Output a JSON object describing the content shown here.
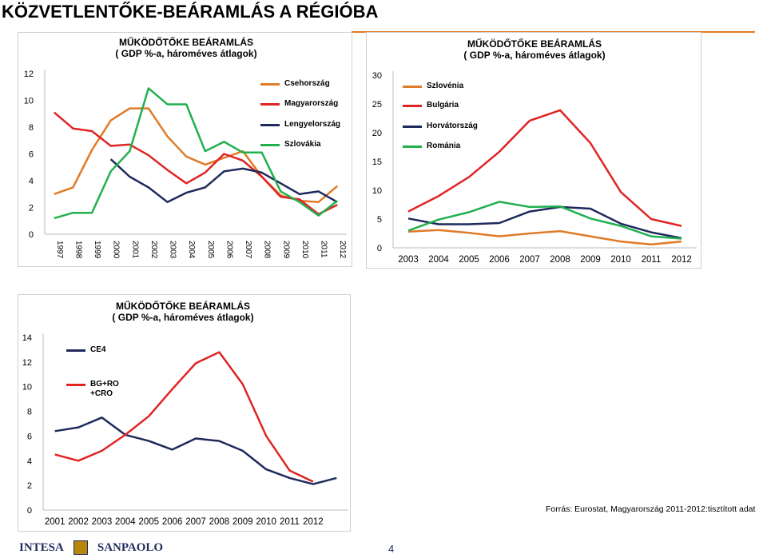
{
  "title": "KÖZVETLENTŐKE-BEÁRAMLÁS A RÉGIÓBA",
  "source": "Forrás: Eurostat, Magyarország 2011-2012:tisztított adat",
  "page_number": "4",
  "logo": {
    "left": "INTESA",
    "right": "SANPAOLO"
  },
  "chart_data": [
    {
      "type": "line",
      "title": "MŰKÖDŐTŐKE BEÁRAMLÁS",
      "subtitle": "( GDP %-a, hároméves átlagok)",
      "categories": [
        "1997",
        "1998",
        "1999",
        "2000",
        "2001",
        "2002",
        "2003",
        "2004",
        "2005",
        "2006",
        "2007",
        "2008",
        "2009",
        "2010",
        "2011",
        "2012"
      ],
      "ylim": [
        0,
        12
      ],
      "yticks": [
        0,
        2,
        4,
        6,
        8,
        10,
        12
      ],
      "grid": false,
      "x_label_rotation": 90,
      "series": [
        {
          "name": "Csehország",
          "color": "#e07b28",
          "values": [
            3.0,
            3.5,
            6.3,
            8.5,
            9.4,
            9.4,
            7.3,
            5.8,
            5.2,
            5.7,
            6.2,
            4.3,
            2.9,
            2.5,
            2.4,
            3.6
          ]
        },
        {
          "name": "Magyarország",
          "color": "#e02424",
          "values": [
            9.1,
            7.9,
            7.7,
            6.6,
            6.7,
            5.9,
            4.8,
            3.8,
            4.6,
            6.0,
            5.5,
            4.3,
            2.8,
            2.6,
            1.5,
            2.2
          ]
        },
        {
          "name": "Lengyelország",
          "color": "#1f2a5c",
          "values": [
            null,
            null,
            null,
            5.6,
            4.3,
            3.5,
            2.4,
            3.1,
            3.5,
            4.7,
            4.9,
            4.6,
            3.8,
            3.0,
            3.2,
            2.4
          ]
        },
        {
          "name": "Szlovákia",
          "color": "#22b04f",
          "values": [
            1.2,
            1.6,
            1.6,
            4.7,
            6.2,
            10.9,
            9.7,
            9.7,
            6.2,
            6.9,
            6.1,
            6.1,
            3.2,
            2.4,
            1.4,
            2.5
          ]
        }
      ]
    },
    {
      "type": "line",
      "title": "MŰKÖDŐTŐKE BEÁRAMLÁS",
      "subtitle": "( GDP %-a, hároméves átlagok)",
      "categories": [
        "2003",
        "2004",
        "2005",
        "2006",
        "2007",
        "2008",
        "2009",
        "2010",
        "2011",
        "2012"
      ],
      "ylim": [
        0,
        30
      ],
      "yticks": [
        0,
        5,
        10,
        15,
        20,
        25,
        30
      ],
      "grid": false,
      "x_label_rotation": 0,
      "series": [
        {
          "name": "Szlovénia",
          "color": "#e07b28",
          "values": [
            2.8,
            3.1,
            2.6,
            2.0,
            2.5,
            2.9,
            2.0,
            1.1,
            0.6,
            1.1
          ]
        },
        {
          "name": "Bulgária",
          "color": "#e02424",
          "values": [
            6.3,
            9.0,
            12.3,
            16.7,
            22.1,
            23.9,
            18.2,
            9.7,
            5.0,
            3.8
          ]
        },
        {
          "name": "Horvátország",
          "color": "#1f2a5c",
          "values": [
            5.1,
            4.1,
            4.1,
            4.3,
            6.3,
            7.1,
            6.8,
            4.2,
            2.7,
            1.7
          ]
        },
        {
          "name": "Románia",
          "color": "#22b04f",
          "values": [
            3.0,
            4.9,
            6.2,
            8.0,
            7.1,
            7.2,
            5.1,
            3.8,
            2.0,
            1.6
          ]
        }
      ]
    },
    {
      "type": "line",
      "title": "MŰKÖDŐTŐKE BEÁRAMLÁS",
      "subtitle": "( GDP %-a, hároméves átlagok)",
      "categories": [
        "2001",
        "2002",
        "2003",
        "2004",
        "2005",
        "2006",
        "2007",
        "2008",
        "2009",
        "2010",
        "2011",
        "2012",
        null
      ],
      "ylim": [
        0,
        14
      ],
      "yticks": [
        0,
        2,
        4,
        6,
        8,
        10,
        12,
        14
      ],
      "grid": false,
      "x_label_rotation": 0,
      "series": [
        {
          "name": "CE4",
          "color": "#1f2a5c",
          "values": [
            6.4,
            6.7,
            7.5,
            6.1,
            5.6,
            4.9,
            5.8,
            5.6,
            4.8,
            3.3,
            2.6,
            2.1,
            2.6
          ]
        },
        {
          "name": "BG+RO +CRO",
          "color": "#e02424",
          "values": [
            4.5,
            4.0,
            4.8,
            6.1,
            7.6,
            9.8,
            11.9,
            12.8,
            10.2,
            6.0,
            3.2,
            2.3,
            null
          ]
        }
      ]
    }
  ]
}
